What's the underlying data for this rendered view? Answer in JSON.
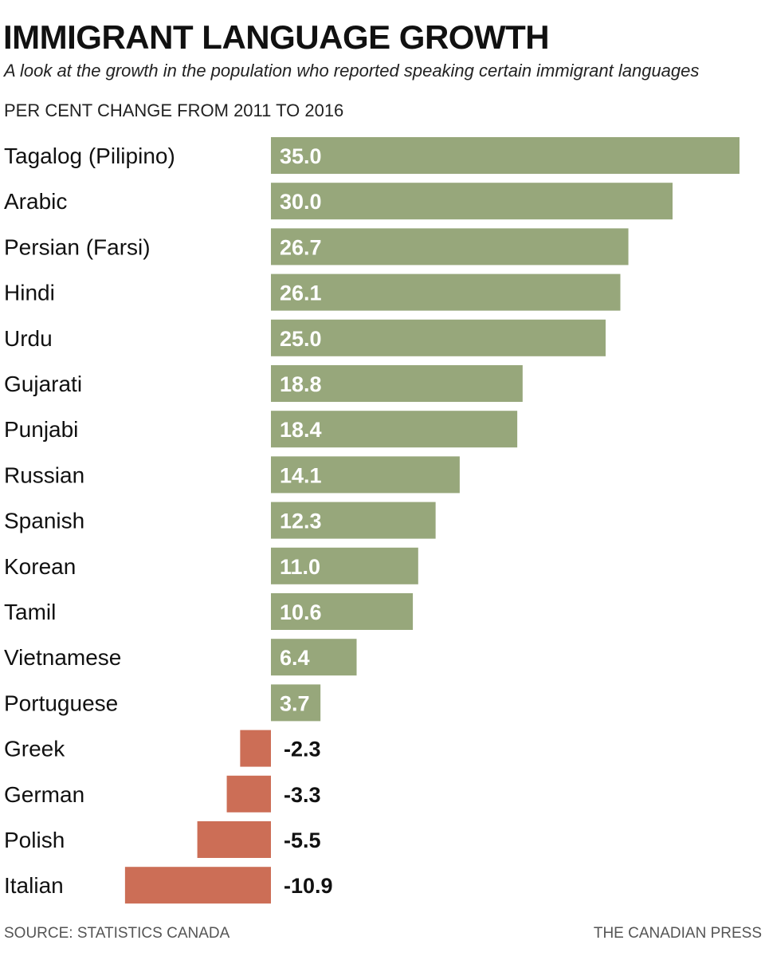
{
  "chart_data": {
    "type": "bar",
    "orientation": "horizontal",
    "title": "IMMIGRANT LANGUAGE GROWTH",
    "subtitle": "A look at the growth in the population who reported speaking certain immigrant languages",
    "ylabel": "PER CENT CHANGE FROM 2011 TO 2016",
    "categories": [
      "Tagalog (Pilipino)",
      "Arabic",
      "Persian (Farsi)",
      "Hindi",
      "Urdu",
      "Gujarati",
      "Punjabi",
      "Russian",
      "Spanish",
      "Korean",
      "Tamil",
      "Vietnamese",
      "Portuguese",
      "Greek",
      "German",
      "Polish",
      "Italian"
    ],
    "values": [
      35.0,
      30.0,
      26.7,
      26.1,
      25.0,
      18.8,
      18.4,
      14.1,
      12.3,
      11.0,
      10.6,
      6.4,
      3.7,
      -2.3,
      -3.3,
      -5.5,
      -10.9
    ],
    "value_labels": [
      "35.0",
      "30.0",
      "26.7",
      "26.1",
      "25.0",
      "18.8",
      "18.4",
      "14.1",
      "12.3",
      "11.0",
      "10.6",
      "6.4",
      "3.7",
      "-2.3",
      "-3.3",
      "-5.5",
      "-10.9"
    ],
    "xlim": [
      -10.9,
      35.0
    ],
    "colors": {
      "positive": "#97a77b",
      "negative": "#cc6e56"
    },
    "grid": false,
    "legend": "none"
  },
  "footer": {
    "source": "SOURCE: STATISTICS CANADA",
    "credit": "THE CANADIAN PRESS"
  }
}
